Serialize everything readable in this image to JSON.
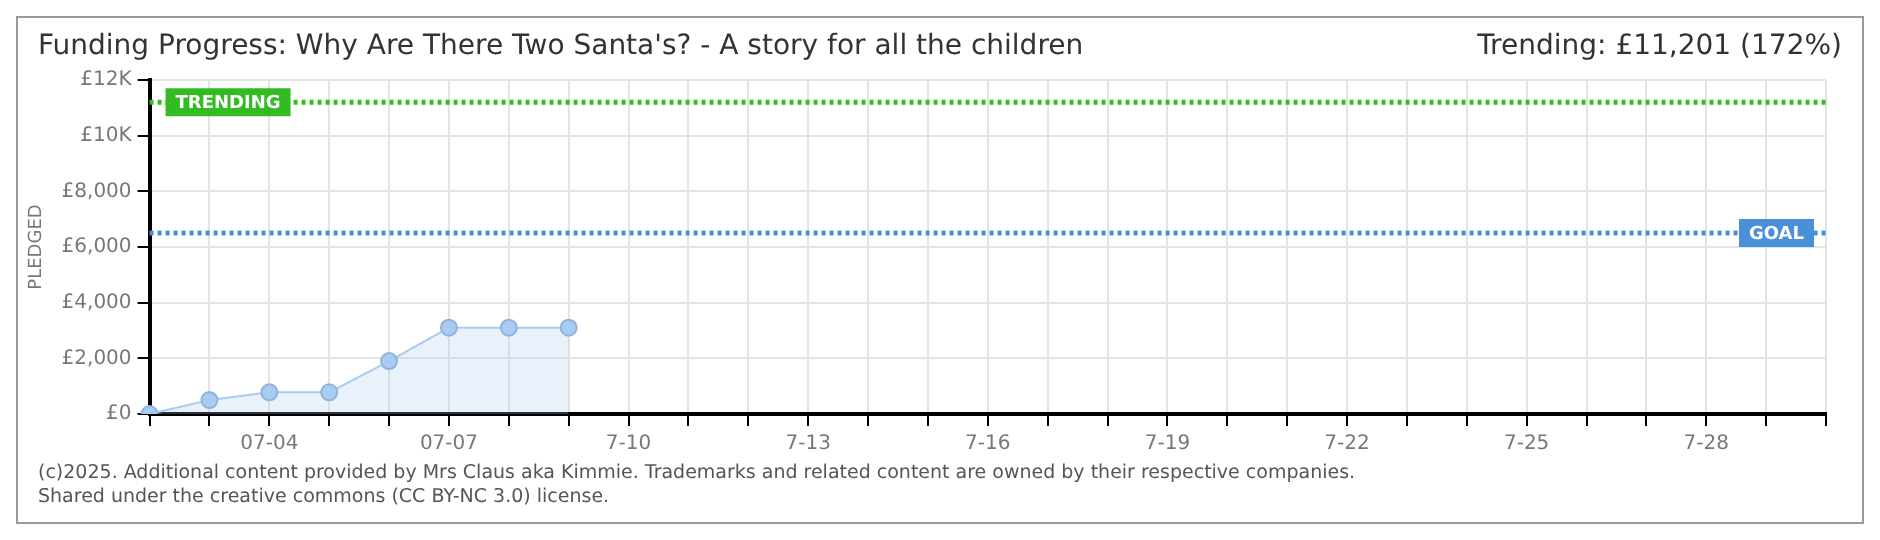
{
  "chart_data": {
    "type": "area",
    "title": "Funding Progress: Why Are There Two Santa's? - A story for all the children",
    "subtitle": "Trending:  £11,201 (172%)",
    "ylabel": "PLEDGED",
    "categories": [
      null,
      null,
      "07-04",
      null,
      null,
      "07-07",
      null,
      null,
      "7-10",
      null,
      null,
      "7-13",
      null,
      null,
      "7-16",
      null,
      null,
      "7-19",
      null,
      null,
      "7-22",
      null,
      null,
      "7-25",
      null,
      null,
      "7-28",
      null,
      null
    ],
    "series": [
      {
        "color": "#a9cbef",
        "values": [
          0,
          500,
          780,
          780,
          1900,
          3100,
          3100,
          3100,
          null,
          null,
          null,
          null,
          null,
          null,
          null,
          null,
          null,
          null,
          null,
          null,
          null,
          null,
          null,
          null,
          null,
          null,
          null,
          null,
          null
        ]
      }
    ],
    "ylim": [
      0,
      12000
    ],
    "yticks": [
      {
        "value": 0,
        "label": "£0"
      },
      {
        "value": 2000,
        "label": "£2,000"
      },
      {
        "value": 4000,
        "label": "£4,000"
      },
      {
        "value": 6000,
        "label": "£6,000"
      },
      {
        "value": 8000,
        "label": "£8,000"
      },
      {
        "value": 10000,
        "label": "£10K"
      },
      {
        "value": 12000,
        "label": "£12K"
      }
    ],
    "ref_lines": [
      {
        "axis": "y",
        "value": 11201,
        "label": "TRENDING",
        "color": "#33bb22",
        "line_style": "dotted"
      },
      {
        "axis": "y",
        "value": 6500,
        "label": "GOAL",
        "color": "#4a90d9",
        "line_style": "dotted"
      }
    ],
    "annotations": [
      "(c)2025. Additional content provided by Mrs Claus aka Kimmie. Trademarks and related content are owned by their respective companies.",
      "Shared under the creative commons (CC BY-NC 3.0) license."
    ],
    "grid": true,
    "legend": false,
    "marker": "circle",
    "line_style": "solid"
  }
}
